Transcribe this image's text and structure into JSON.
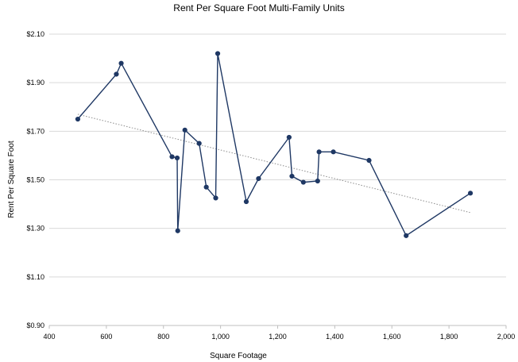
{
  "chart_data": {
    "type": "line",
    "title": "Rent Per Square Foot Multi-Family Units",
    "xlabel": "Square Footage",
    "ylabel": "Rent Per Square Foot",
    "xlim": [
      400,
      2000
    ],
    "ylim": [
      0.9,
      2.1
    ],
    "x_ticks": [
      400,
      600,
      800,
      1000,
      1200,
      1400,
      1600,
      1800,
      2000
    ],
    "x_tick_labels": [
      "400",
      "600",
      "800",
      "1,000",
      "1,200",
      "1,400",
      "1,600",
      "1,800",
      "2,000"
    ],
    "y_ticks": [
      0.9,
      1.1,
      1.3,
      1.5,
      1.7,
      1.9,
      2.1
    ],
    "y_tick_labels": [
      "$0.90",
      "$1.10",
      "$1.30",
      "$1.50",
      "$1.70",
      "$1.90",
      "$2.10"
    ],
    "grid": "horizontal",
    "legend": "none",
    "series": [
      {
        "color": "#1f3864",
        "points": [
          [
            500,
            1.75
          ],
          [
            635,
            1.935
          ],
          [
            652,
            1.98
          ],
          [
            830,
            1.595
          ],
          [
            848,
            1.59
          ],
          [
            850,
            1.29
          ],
          [
            875,
            1.705
          ],
          [
            925,
            1.65
          ],
          [
            950,
            1.47
          ],
          [
            983,
            1.425
          ],
          [
            990,
            2.02
          ],
          [
            1090,
            1.41
          ],
          [
            1133,
            1.505
          ],
          [
            1240,
            1.675
          ],
          [
            1250,
            1.515
          ],
          [
            1290,
            1.49
          ],
          [
            1340,
            1.495
          ],
          [
            1345,
            1.615
          ],
          [
            1395,
            1.615
          ],
          [
            1520,
            1.58
          ],
          [
            1650,
            1.27
          ],
          [
            1875,
            1.445
          ]
        ]
      }
    ],
    "trendline": {
      "type": "linear",
      "color": "#8c8c8c",
      "x_range": [
        500,
        1875
      ],
      "y_at_ends": [
        1.77,
        1.365
      ]
    }
  }
}
